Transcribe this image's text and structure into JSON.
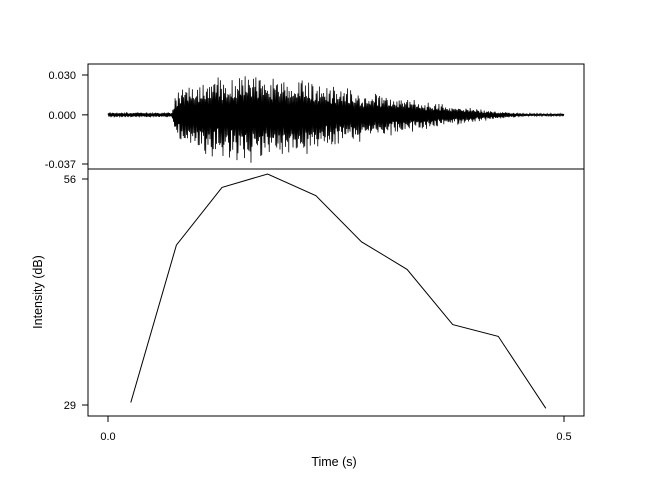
{
  "chart_data": [
    {
      "panel": "waveform",
      "type": "line",
      "ylim": [
        -0.037,
        0.03
      ],
      "yticks": [
        0.03,
        0.0,
        -0.037
      ],
      "ytick_labels": [
        "0.030",
        "0.000",
        "-0.037"
      ],
      "xlim": [
        0.0,
        0.5
      ],
      "envelope": {
        "t": [
          0.0,
          0.07,
          0.075,
          0.1,
          0.12,
          0.14,
          0.16,
          0.18,
          0.22,
          0.26,
          0.3,
          0.34,
          0.38,
          0.42,
          0.46,
          0.5
        ],
        "pos": [
          0.002,
          0.002,
          0.018,
          0.026,
          0.029,
          0.033,
          0.034,
          0.03,
          0.026,
          0.021,
          0.016,
          0.011,
          0.007,
          0.003,
          0.001,
          0.001
        ],
        "neg": [
          0.002,
          0.002,
          0.02,
          0.029,
          0.033,
          0.036,
          0.037,
          0.034,
          0.03,
          0.024,
          0.018,
          0.012,
          0.008,
          0.004,
          0.001,
          0.001
        ]
      }
    },
    {
      "panel": "intensity",
      "type": "line",
      "ylabel": "Intensity (dB)",
      "ylim": [
        29,
        56
      ],
      "yticks": [
        29,
        56
      ],
      "ytick_labels": [
        "29",
        "56"
      ],
      "xlabel": "Time (s)",
      "xlim": [
        0.0,
        0.5
      ],
      "xticks": [
        0.0,
        0.5
      ],
      "xtick_labels": [
        "0.0",
        "0.5"
      ],
      "x": [
        0.025,
        0.075,
        0.125,
        0.175,
        0.228,
        0.278,
        0.328,
        0.378,
        0.428,
        0.48
      ],
      "y": [
        29.3,
        48.1,
        55.0,
        56.6,
        54.0,
        48.5,
        45.2,
        38.6,
        37.2,
        28.6
      ]
    }
  ]
}
